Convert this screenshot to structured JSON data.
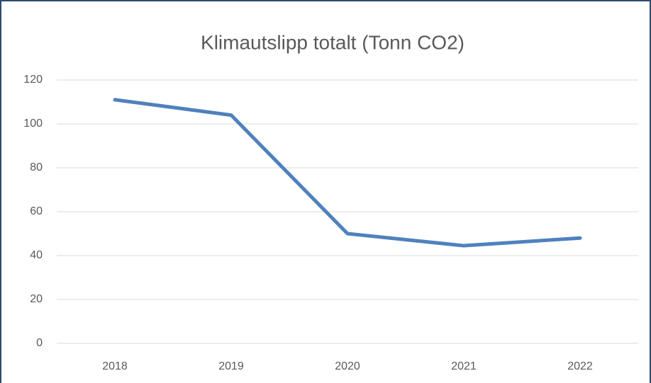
{
  "chart_data": {
    "type": "line",
    "title": "Klimautslipp totalt (Tonn CO2)",
    "categories": [
      "2018",
      "2019",
      "2020",
      "2021",
      "2022"
    ],
    "series": [
      {
        "color": "#4f81bd",
        "values": [
          111,
          104,
          50,
          44.5,
          48
        ]
      }
    ],
    "ylim": [
      0,
      120
    ],
    "yticks": [
      0,
      20,
      40,
      60,
      80,
      100,
      120
    ],
    "grid": true
  }
}
